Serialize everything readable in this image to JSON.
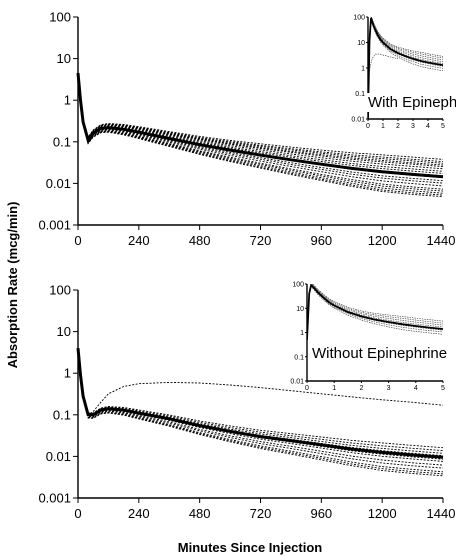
{
  "figure": {
    "ylabel": "Absorption Rate (mcg/min)",
    "xlabel": "Minutes Since Injection"
  },
  "chart_data": [
    {
      "type": "line",
      "panel": "top",
      "y_scale": "log",
      "xlim": [
        0,
        1440
      ],
      "ylim": [
        0.001,
        100
      ],
      "x_ticks": [
        "0",
        "240",
        "480",
        "720",
        "960",
        "1200",
        "1440"
      ],
      "y_ticks": [
        "0.001",
        "0.01",
        "0.1",
        "1",
        "10",
        "100"
      ],
      "x": [
        0,
        10,
        20,
        40,
        60,
        90,
        120,
        180,
        240,
        360,
        480,
        600,
        720,
        840,
        960,
        1080,
        1200,
        1320,
        1440
      ],
      "mean": [
        4.5,
        1.0,
        0.3,
        0.11,
        0.16,
        0.21,
        0.22,
        0.2,
        0.17,
        0.12,
        0.085,
        0.063,
        0.048,
        0.037,
        0.029,
        0.023,
        0.019,
        0.0165,
        0.0145
      ],
      "individual_scale": [
        0.8,
        0.95,
        1.05,
        1.2,
        1.35,
        1.55,
        1.75,
        1.9,
        2.1,
        2.3,
        2.6,
        0.7,
        0.6,
        0.5,
        0.45,
        0.4,
        0.36,
        0.33
      ],
      "inset": {
        "label": "With Epinephrine",
        "y_scale": "log",
        "xlim": [
          0,
          5
        ],
        "ylim": [
          0.01,
          100
        ],
        "x_ticks": [
          "0",
          "1",
          "2",
          "3",
          "4",
          "5"
        ],
        "y_ticks": [
          "0.01",
          "0.1",
          "1",
          "10",
          "100"
        ],
        "x": [
          0,
          0.1,
          0.2,
          0.3,
          0.4,
          0.6,
          0.8,
          1,
          1.5,
          2,
          2.5,
          3,
          3.5,
          4,
          4.5,
          5
        ],
        "mean": [
          0.01,
          12,
          90,
          60,
          40,
          22,
          14,
          10,
          5.5,
          3.8,
          2.9,
          2.3,
          1.9,
          1.65,
          1.45,
          1.3
        ],
        "individual_scale": [
          0.6,
          0.75,
          0.9,
          1.15,
          1.35,
          1.6,
          1.9,
          2.2
        ],
        "slow_curve": {
          "x": [
            0.1,
            0.2,
            0.3,
            0.5,
            0.8,
            1,
            1.5,
            2
          ],
          "y": [
            0.8,
            1.6,
            2.5,
            3.5,
            3.5,
            3.2,
            2.7,
            2.3
          ]
        }
      }
    },
    {
      "type": "line",
      "panel": "bottom",
      "y_scale": "log",
      "xlim": [
        0,
        1440
      ],
      "ylim": [
        0.001,
        100
      ],
      "x_ticks": [
        "0",
        "240",
        "480",
        "720",
        "960",
        "1200",
        "1440"
      ],
      "y_ticks": [
        "0.001",
        "0.01",
        "0.1",
        "1",
        "10",
        "100"
      ],
      "x": [
        0,
        10,
        20,
        40,
        60,
        90,
        120,
        180,
        240,
        360,
        480,
        600,
        720,
        840,
        960,
        1080,
        1200,
        1320,
        1440
      ],
      "mean": [
        4.0,
        0.9,
        0.28,
        0.1,
        0.1,
        0.13,
        0.14,
        0.13,
        0.11,
        0.08,
        0.055,
        0.04,
        0.03,
        0.024,
        0.019,
        0.015,
        0.0125,
        0.0108,
        0.0095
      ],
      "individual_scale": [
        0.8,
        0.9,
        1.1,
        1.25,
        1.45,
        1.7,
        0.65,
        0.55,
        0.45,
        0.4,
        0.36
      ],
      "outlier": {
        "x": [
          0,
          10,
          20,
          40,
          60,
          90,
          120,
          180,
          240,
          360,
          480,
          600,
          720,
          840,
          960,
          1080,
          1200,
          1320,
          1440
        ],
        "y": [
          4.0,
          0.9,
          0.3,
          0.1,
          0.12,
          0.2,
          0.32,
          0.48,
          0.56,
          0.6,
          0.58,
          0.52,
          0.45,
          0.38,
          0.32,
          0.27,
          0.23,
          0.2,
          0.17
        ]
      },
      "inset": {
        "label": "Without Epinephrine",
        "y_scale": "log",
        "xlim": [
          0,
          5
        ],
        "ylim": [
          0.01,
          100
        ],
        "x_ticks": [
          "0",
          "1",
          "2",
          "3",
          "4",
          "5"
        ],
        "y_ticks": [
          "0.01",
          "0.1",
          "1",
          "10",
          "100"
        ],
        "x": [
          0,
          0.08,
          0.15,
          0.25,
          0.4,
          0.6,
          0.8,
          1,
          1.5,
          2,
          2.5,
          3,
          3.5,
          4,
          4.5,
          5
        ],
        "mean": [
          0.5,
          40,
          90,
          70,
          45,
          28,
          18,
          13,
          7,
          4.6,
          3.4,
          2.7,
          2.2,
          1.85,
          1.6,
          1.4
        ],
        "individual_scale": [
          0.6,
          0.75,
          0.9,
          1.2,
          1.45,
          1.75,
          2.1
        ]
      }
    }
  ]
}
